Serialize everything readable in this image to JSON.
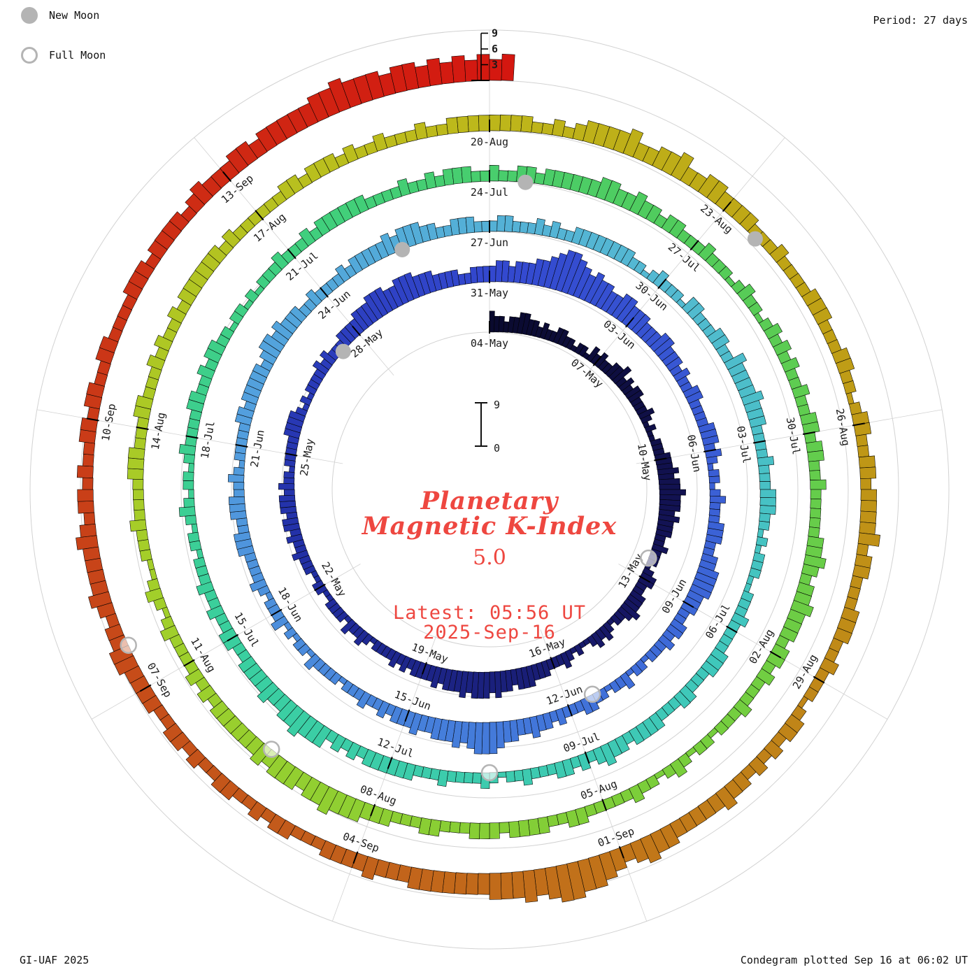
{
  "header": {
    "period": "Period: 27 days"
  },
  "legend": {
    "new_moon": "New Moon",
    "full_moon": "Full Moon"
  },
  "footer": {
    "credit": "GI-UAF 2025",
    "plotted": "Condegram plotted Sep 16 at 06:02 UT"
  },
  "center": {
    "title_line1": "Planetary",
    "title_line2": "Magnetic K-Index",
    "current_value": "5.0",
    "latest_line1": "Latest: 05:56 UT",
    "latest_line2": "2025-Sep-16",
    "scale_max": "9",
    "scale_min": "0"
  },
  "colors": {
    "accent_red": "#ee4740",
    "moon_gray": "#b4b4b4",
    "grid_gray": "#d2d2d2",
    "bar_outline": "#000000"
  },
  "chart_data": {
    "type": "bar",
    "subtype": "polar-spiral-condegram",
    "title": "Planetary Magnetic K-Index",
    "period_days": 27,
    "hours_per_bar": 3,
    "bars_per_day": 8,
    "start_date": "2025-05-04",
    "end_date": "2025-09-16",
    "latest_value": 5.0,
    "latest_time_ut": "05:56",
    "plotted_note": "Condegram plotted Sep 16 at 06:02 UT",
    "value_range": [
      0,
      9
    ],
    "scale_ticks": [
      "3",
      "6",
      "9"
    ],
    "grid": true,
    "date_labels": [
      "04-May",
      "07-May",
      "10-May",
      "13-May",
      "16-May",
      "19-May",
      "22-May",
      "25-May",
      "28-May",
      "31-May",
      "03-Jun",
      "06-Jun",
      "09-Jun",
      "12-Jun",
      "15-Jun",
      "18-Jun",
      "21-Jun",
      "24-Jun",
      "27-Jun",
      "30-Jun",
      "03-Jul",
      "06-Jul",
      "09-Jul",
      "12-Jul",
      "15-Jul",
      "18-Jul",
      "21-Jul",
      "24-Jul",
      "27-Jul",
      "30-Jul",
      "02-Aug",
      "05-Aug",
      "08-Aug",
      "11-Aug",
      "14-Aug",
      "17-Aug",
      "20-Aug",
      "23-Aug",
      "26-Aug",
      "29-Aug",
      "01-Sep",
      "04-Sep",
      "07-Sep",
      "10-Sep",
      "13-Sep"
    ],
    "moons": [
      {
        "phase": "full",
        "date": "2025-05-12",
        "day": 8
      },
      {
        "phase": "new",
        "date": "2025-05-27",
        "day": 23
      },
      {
        "phase": "full",
        "date": "2025-06-11",
        "day": 38
      },
      {
        "phase": "new",
        "date": "2025-06-25",
        "day": 52
      },
      {
        "phase": "full",
        "date": "2025-07-10",
        "day": 67
      },
      {
        "phase": "new",
        "date": "2025-07-24",
        "day": 81
      },
      {
        "phase": "full",
        "date": "2025-08-09",
        "day": 97
      },
      {
        "phase": "new",
        "date": "2025-08-23",
        "day": 111
      },
      {
        "phase": "full",
        "date": "2025-09-07",
        "day": 126
      }
    ],
    "colormap": [
      {
        "t": 0.0,
        "c": "#0a0a2e"
      },
      {
        "t": 0.07,
        "c": "#15155e"
      },
      {
        "t": 0.14,
        "c": "#2230a6"
      },
      {
        "t": 0.2,
        "c": "#3348cf"
      },
      {
        "t": 0.28,
        "c": "#3f6ed9"
      },
      {
        "t": 0.36,
        "c": "#53a0de"
      },
      {
        "t": 0.42,
        "c": "#54b9d2"
      },
      {
        "t": 0.47,
        "c": "#3fc7bb"
      },
      {
        "t": 0.53,
        "c": "#3acfa0"
      },
      {
        "t": 0.58,
        "c": "#40cf7d"
      },
      {
        "t": 0.62,
        "c": "#52cc5b"
      },
      {
        "t": 0.68,
        "c": "#79ce3b"
      },
      {
        "t": 0.74,
        "c": "#a3cf2a"
      },
      {
        "t": 0.79,
        "c": "#bdbc1c"
      },
      {
        "t": 0.83,
        "c": "#bfa315"
      },
      {
        "t": 0.87,
        "c": "#c08418"
      },
      {
        "t": 0.91,
        "c": "#c2601b"
      },
      {
        "t": 0.95,
        "c": "#c93d18"
      },
      {
        "t": 1.0,
        "c": "#d41710"
      }
    ],
    "k_days": [
      "43323344",
      "33232233",
      "22122132",
      "32233423",
      "23322232",
      "12112223",
      "33434454",
      "44343332",
      "23222123",
      "32233343",
      "22123232",
      "11212322",
      "23334443",
      "44545554",
      "54443433",
      "33232322",
      "22123223",
      "12222112",
      "21122232",
      "23233233",
      "32322122",
      "22233332",
      "12122223",
      "23222333",
      "34445554",
      "45554443",
      "33322333",
      "34434445",
      "56788765",
      "65544554",
      "44333443",
      "33232233",
      "22223332",
      "32122123",
      "22233322",
      "33444433",
      "32233232",
      "22122132",
      "21223322",
      "23233433",
      "44566654",
      "54443343",
      "33232232",
      "22122223",
      "12212132",
      "22123222",
      "23332233",
      "32232122",
      "22233233",
      "33323443",
      "43332232",
      "22232333",
      "33434443",
      "32233322",
      "23322232",
      "32233333",
      "33322123",
      "22213322",
      "23322433",
      "33433322",
      "22322233",
      "32212122",
      "21122232",
      "22233322",
      "23322233",
      "33233432",
      "32332223",
      "22123222",
      "23222333",
      "33323232",
      "44454433",
      "43333223",
      "32232232",
      "22122123",
      "21221232",
      "22233223",
      "23322122",
      "12122232",
      "22323333",
      "33222232",
      "23233322",
      "32233233",
      "33334433",
      "43323322",
      "23222123",
      "22123232",
      "32232233",
      "23322322",
      "22233432",
      "33433323",
      "32322232",
      "22122123",
      "21223222",
      "22332233",
      "33233322",
      "23322233",
      "34445443",
      "44434333",
      "33323232",
      "22232123",
      "21122232",
      "22233322",
      "23322232",
      "32232333",
      "33323222",
      "22233233",
      "32322322",
      "23223333",
      "33332232",
      "34444533",
      "44533443",
      "33322232",
      "22233322",
      "23322123",
      "32233233",
      "33423322",
      "23332232",
      "22123323",
      "23233433",
      "33344543",
      "45667765",
      "65554444",
      "44433343",
      "33322233",
      "23223322",
      "32332233",
      "33443323",
      "43333432",
      "33232233",
      "23322332",
      "22233323",
      "33323433",
      "34434444",
      "45565554",
      "55454545",
      "45"
    ]
  }
}
